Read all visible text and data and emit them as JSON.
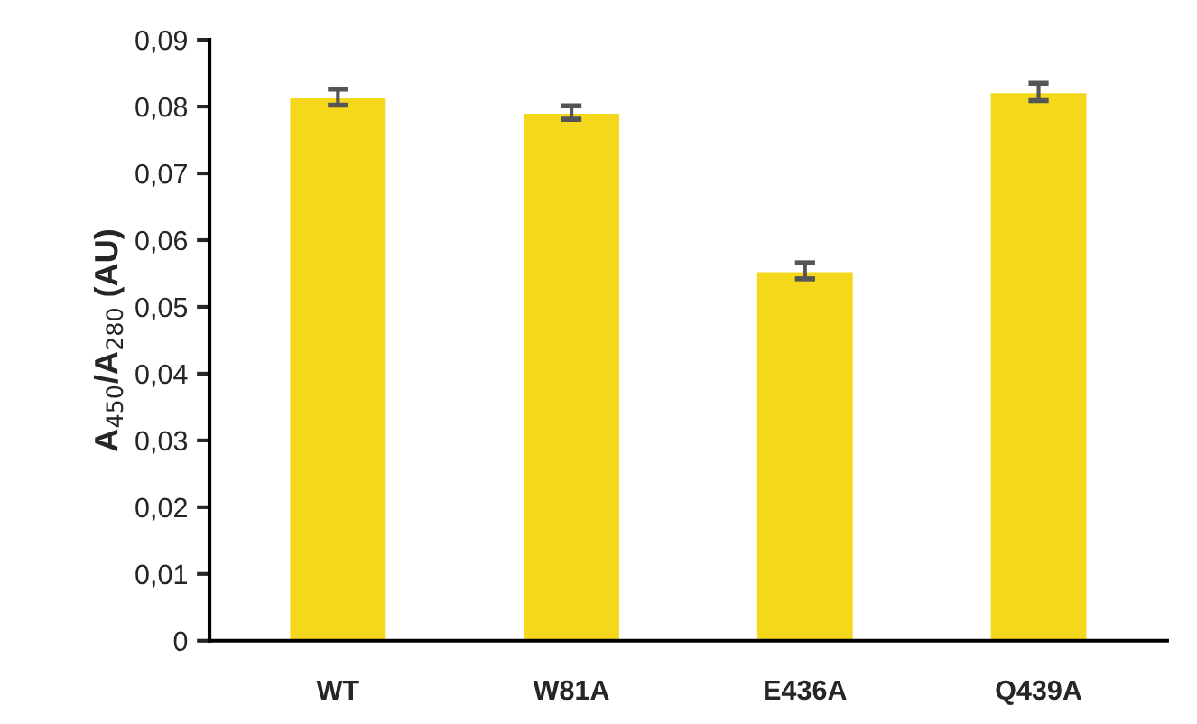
{
  "chart_data": {
    "type": "bar",
    "ylabel": "A$_{450}$/A$_{280}$ (AU)",
    "categories": [
      "WT",
      "W81A",
      "E436A",
      "Q439A"
    ],
    "values": [
      0.0814,
      0.0791,
      0.0554,
      0.0822
    ],
    "errors": [
      0.0012,
      0.001,
      0.0012,
      0.0013
    ],
    "color": "#f5d81c",
    "ylim": [
      0,
      0.09
    ],
    "yticks": [
      0,
      {
        "value": 0.01,
        "label": "0,01"
      },
      {
        "value": 0.02,
        "label": "0,02"
      },
      {
        "value": 0.03,
        "label": "0,03"
      },
      {
        "value": 0.04,
        "label": "0,04"
      },
      {
        "value": 0.05,
        "label": "0,05"
      },
      {
        "value": 0.06,
        "label": "0,06"
      },
      {
        "value": 0.07,
        "label": "0,07"
      },
      {
        "value": 0.08,
        "label": "0,08"
      },
      {
        "value": 0.09,
        "label": "0,09"
      }
    ],
    "grid": false
  }
}
